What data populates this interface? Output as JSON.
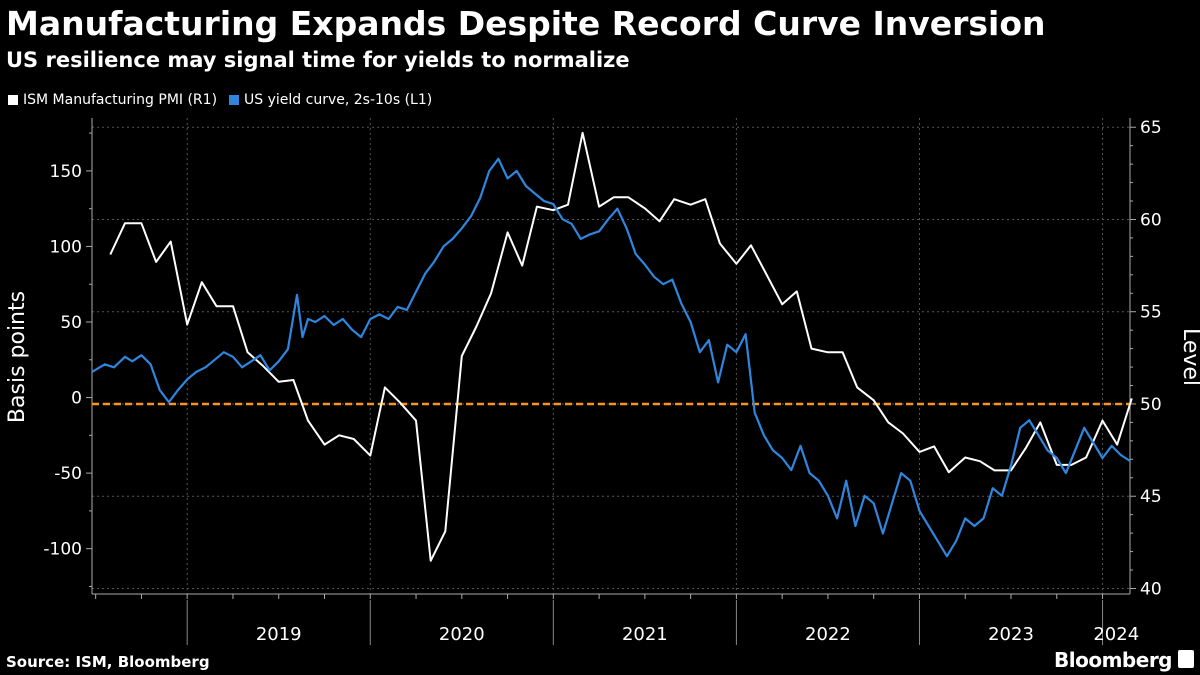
{
  "chart_data": {
    "type": "line",
    "title": "Manufacturing Expands Despite Record Curve Inversion",
    "subtitle": "US resilience may signal time for yields to normalize",
    "ylabel_left": "Basis points",
    "ylabel_right": "Level",
    "source": "Source: ISM, Bloomberg",
    "brand": "Bloomberg",
    "x_ticks": [
      "2019",
      "2020",
      "2021",
      "2022",
      "2023",
      "2024"
    ],
    "y_left_ticks": [
      "150",
      "100",
      "50",
      "0",
      "-50",
      "-100"
    ],
    "y_right_ticks": [
      "65",
      "60",
      "55",
      "50",
      "45",
      "40"
    ],
    "y_left_range": [
      -130,
      185
    ],
    "y_right_range": [
      39.7,
      65.5
    ],
    "x_range": [
      2018.48,
      2024.15
    ],
    "reference_line": {
      "axis": "right",
      "value": 50,
      "color": "#f7931e"
    },
    "series": [
      {
        "name": "ISM Manufacturing PMI  (R1)",
        "axis": "right",
        "color": "#ffffff",
        "x": [
          2018.58,
          2018.66,
          2018.75,
          2018.83,
          2018.91,
          2019.0,
          2019.08,
          2019.16,
          2019.25,
          2019.33,
          2019.41,
          2019.5,
          2019.58,
          2019.66,
          2019.75,
          2019.83,
          2019.91,
          2020.0,
          2020.08,
          2020.16,
          2020.25,
          2020.33,
          2020.41,
          2020.5,
          2020.58,
          2020.66,
          2020.75,
          2020.83,
          2020.91,
          2021.0,
          2021.08,
          2021.16,
          2021.25,
          2021.33,
          2021.41,
          2021.5,
          2021.58,
          2021.66,
          2021.75,
          2021.83,
          2021.91,
          2022.0,
          2022.08,
          2022.16,
          2022.25,
          2022.33,
          2022.41,
          2022.5,
          2022.58,
          2022.66,
          2022.75,
          2022.83,
          2022.91,
          2023.0,
          2023.08,
          2023.16,
          2023.25,
          2023.33,
          2023.41,
          2023.5,
          2023.58,
          2023.66,
          2023.75,
          2023.83,
          2023.91,
          2024.0,
          2024.08,
          2024.16
        ],
        "values": [
          58.1,
          59.8,
          59.8,
          57.7,
          58.8,
          54.3,
          56.6,
          55.3,
          55.3,
          52.8,
          52.1,
          51.2,
          51.3,
          49.1,
          47.8,
          48.3,
          48.1,
          47.2,
          50.9,
          50.1,
          49.1,
          41.5,
          43.1,
          52.6,
          54.2,
          56.0,
          59.3,
          57.5,
          60.7,
          60.5,
          60.8,
          64.7,
          60.7,
          61.2,
          61.2,
          60.6,
          59.9,
          61.1,
          60.8,
          61.1,
          58.7,
          57.6,
          58.6,
          57.1,
          55.4,
          56.1,
          53.0,
          52.8,
          52.8,
          50.9,
          50.2,
          49.0,
          48.4,
          47.4,
          47.7,
          46.3,
          47.1,
          46.9,
          46.4,
          46.4,
          47.6,
          49.0,
          46.7,
          46.7,
          47.1,
          49.1,
          47.8,
          50.3
        ]
      },
      {
        "name": "US yield curve, 2s-10s (L1)",
        "axis": "left",
        "color": "#2e86de",
        "x": [
          2018.48,
          2018.55,
          2018.6,
          2018.66,
          2018.7,
          2018.75,
          2018.8,
          2018.85,
          2018.9,
          2018.95,
          2019.0,
          2019.05,
          2019.1,
          2019.15,
          2019.2,
          2019.25,
          2019.3,
          2019.35,
          2019.4,
          2019.45,
          2019.5,
          2019.55,
          2019.6,
          2019.63,
          2019.66,
          2019.7,
          2019.75,
          2019.8,
          2019.85,
          2019.9,
          2019.95,
          2020.0,
          2020.05,
          2020.1,
          2020.15,
          2020.2,
          2020.25,
          2020.3,
          2020.35,
          2020.4,
          2020.45,
          2020.5,
          2020.55,
          2020.6,
          2020.65,
          2020.7,
          2020.75,
          2020.8,
          2020.85,
          2020.9,
          2020.95,
          2021.0,
          2021.05,
          2021.1,
          2021.15,
          2021.2,
          2021.25,
          2021.3,
          2021.35,
          2021.4,
          2021.45,
          2021.5,
          2021.55,
          2021.6,
          2021.65,
          2021.7,
          2021.75,
          2021.8,
          2021.85,
          2021.9,
          2021.95,
          2022.0,
          2022.05,
          2022.1,
          2022.15,
          2022.2,
          2022.25,
          2022.3,
          2022.35,
          2022.4,
          2022.45,
          2022.5,
          2022.55,
          2022.6,
          2022.65,
          2022.7,
          2022.75,
          2022.8,
          2022.85,
          2022.9,
          2022.95,
          2023.0,
          2023.05,
          2023.1,
          2023.15,
          2023.2,
          2023.25,
          2023.3,
          2023.35,
          2023.4,
          2023.45,
          2023.5,
          2023.55,
          2023.6,
          2023.65,
          2023.7,
          2023.75,
          2023.8,
          2023.85,
          2023.9,
          2023.95,
          2024.0,
          2024.05,
          2024.1,
          2024.15
        ],
        "values": [
          17,
          22,
          20,
          27,
          24,
          28,
          22,
          5,
          -3,
          5,
          12,
          17,
          20,
          25,
          30,
          27,
          20,
          24,
          28,
          18,
          24,
          32,
          68,
          40,
          52,
          50,
          54,
          48,
          52,
          45,
          40,
          52,
          55,
          52,
          60,
          58,
          70,
          82,
          90,
          100,
          105,
          112,
          120,
          132,
          150,
          158,
          145,
          150,
          140,
          135,
          130,
          128,
          118,
          115,
          105,
          108,
          110,
          118,
          125,
          112,
          95,
          88,
          80,
          75,
          78,
          62,
          50,
          30,
          38,
          10,
          35,
          30,
          42,
          -10,
          -25,
          -35,
          -40,
          -48,
          -32,
          -50,
          -55,
          -65,
          -80,
          -55,
          -85,
          -65,
          -70,
          -90,
          -70,
          -50,
          -55,
          -75,
          -85,
          -95,
          -105,
          -95,
          -80,
          -85,
          -80,
          -60,
          -65,
          -45,
          -20,
          -15,
          -25,
          -35,
          -40,
          -50,
          -35,
          -20,
          -30,
          -40,
          -32,
          -38,
          -42
        ]
      }
    ]
  }
}
